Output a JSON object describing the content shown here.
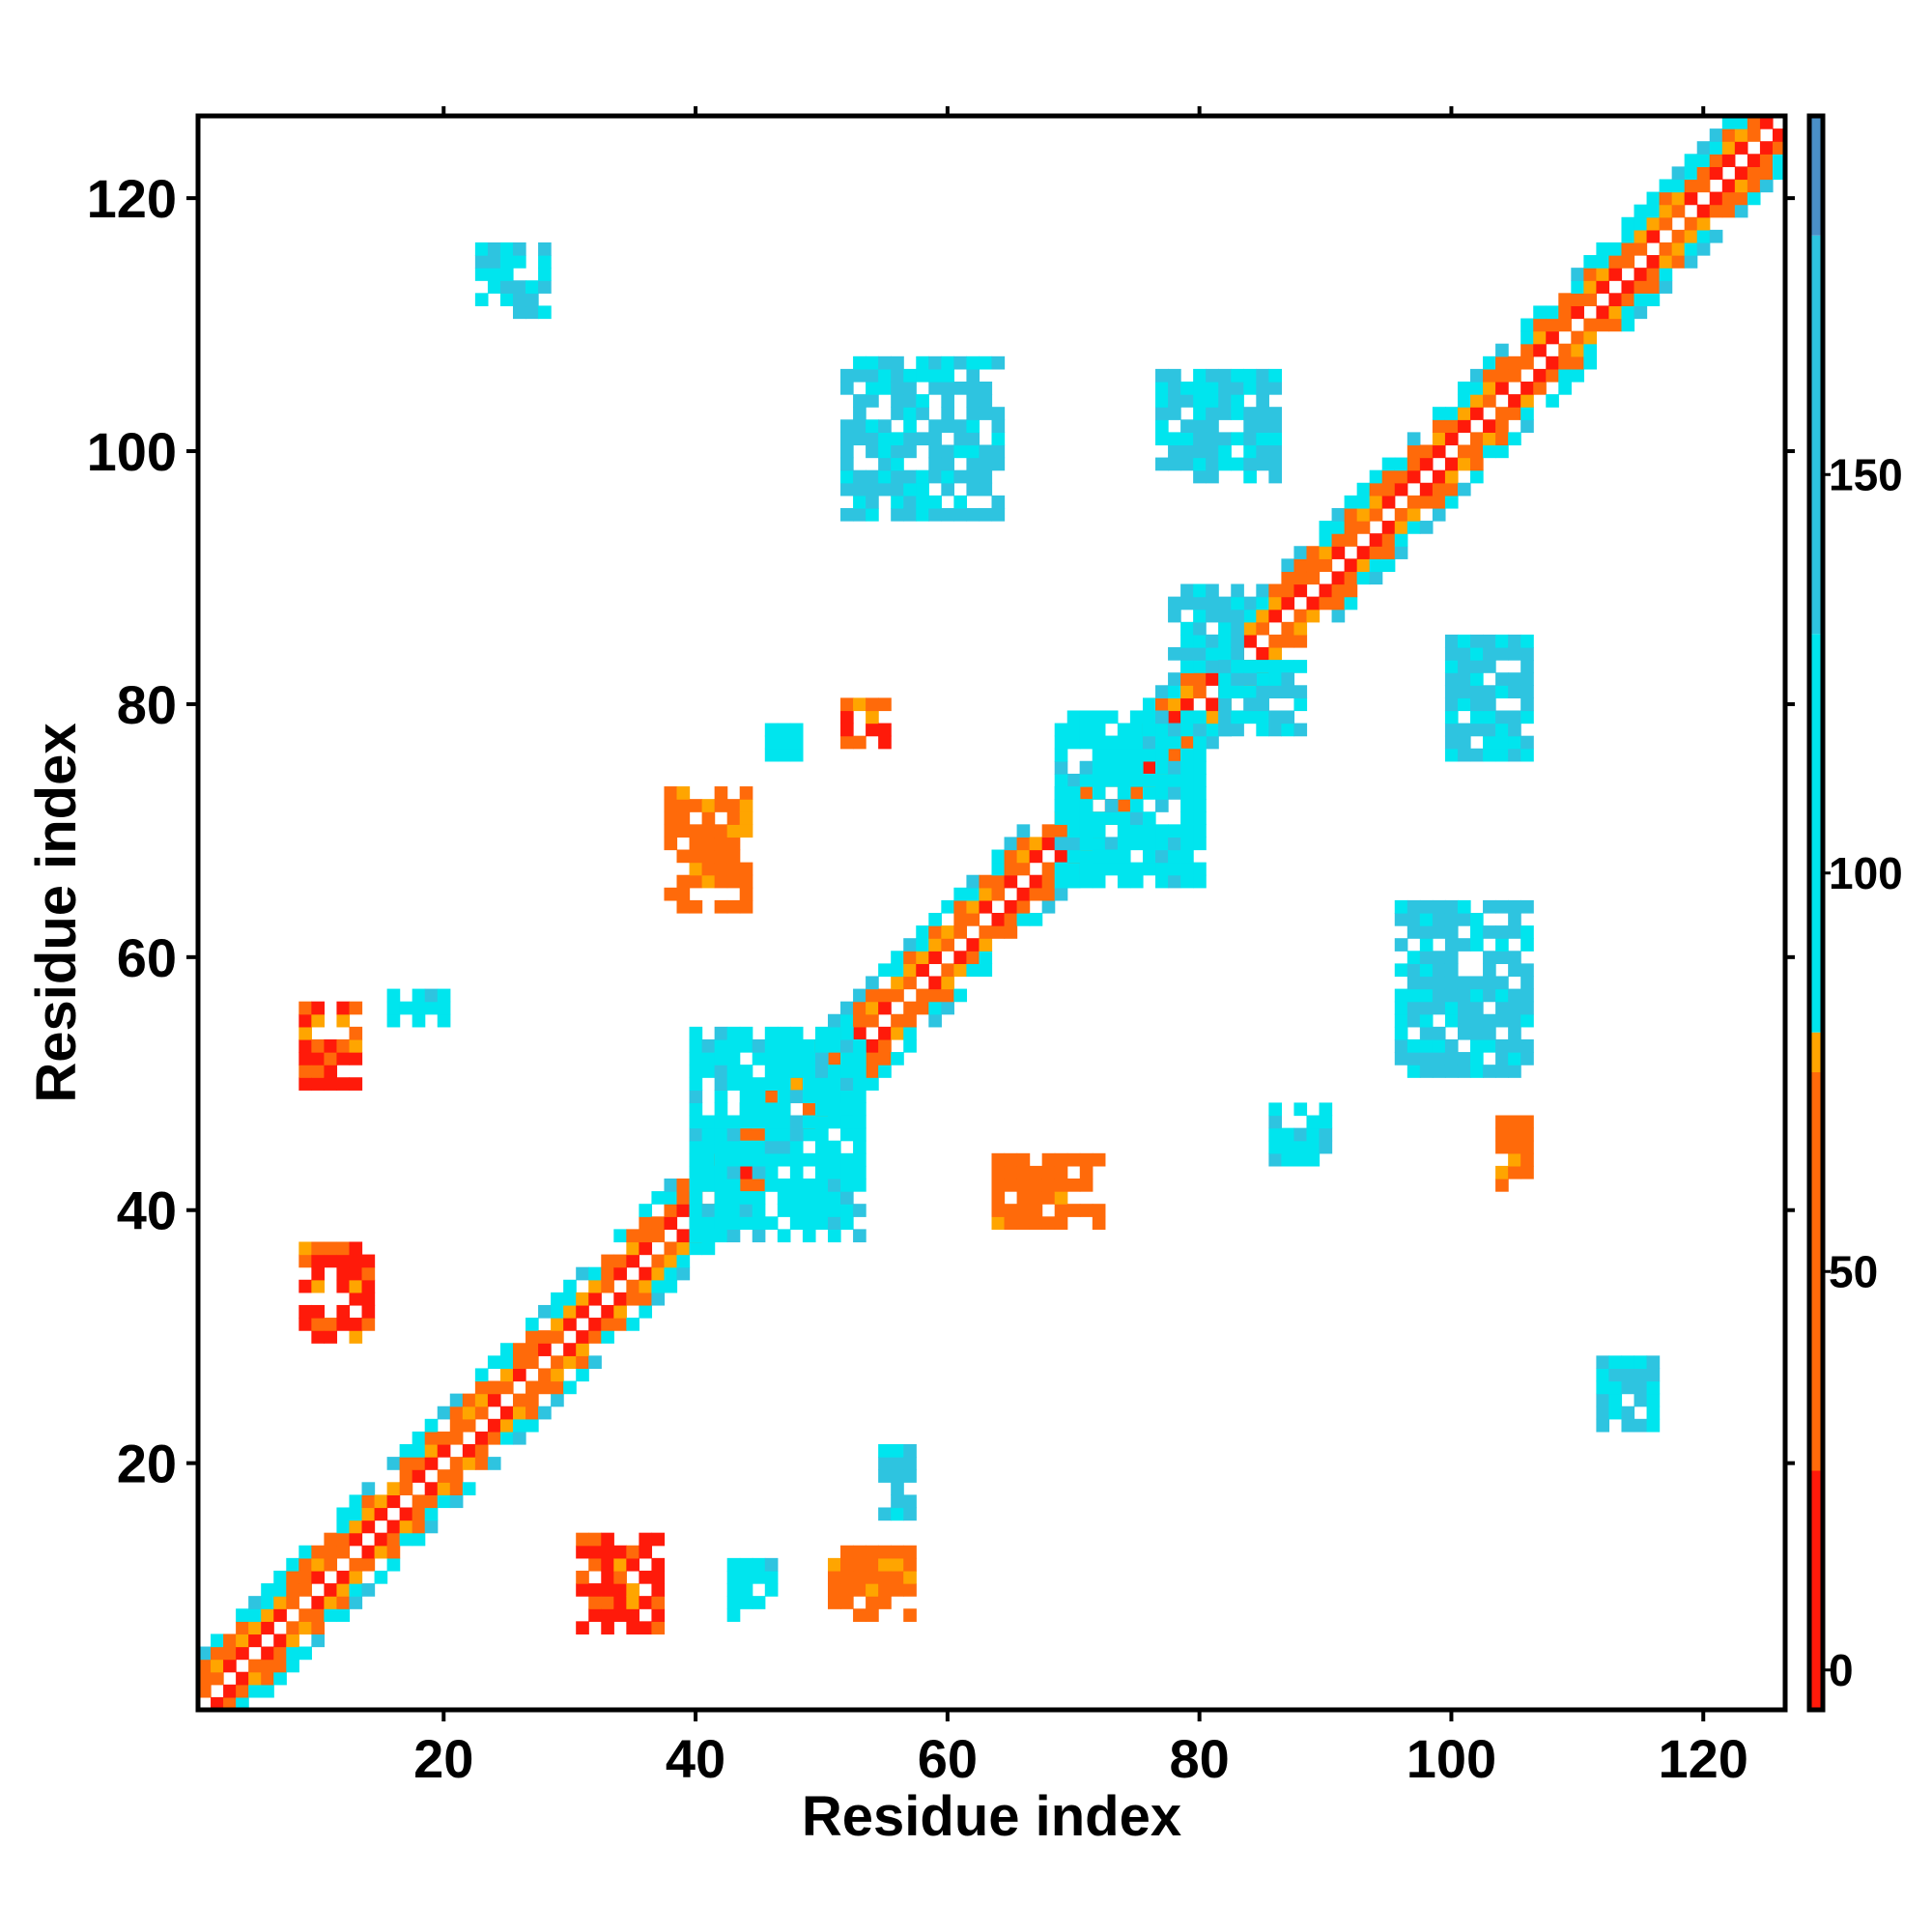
{
  "chart_data": {
    "type": "heatmap",
    "xlabel": "Residue index",
    "ylabel": "Residue index",
    "xlim": [
      1,
      126
    ],
    "ylim": [
      1,
      126
    ],
    "x_ticks": [
      20,
      40,
      60,
      80,
      100,
      120
    ],
    "y_ticks": [
      20,
      40,
      60,
      80,
      100,
      120
    ],
    "colorbar": {
      "ticks": [
        0,
        50,
        100,
        150
      ],
      "range": [
        -5,
        195
      ],
      "bands": [
        {
          "from": -5,
          "to": 25,
          "color": "#ff1a0a"
        },
        {
          "from": 25,
          "to": 75,
          "color": "#ff6a0a"
        },
        {
          "from": 75,
          "to": 80,
          "color": "#ffa500"
        },
        {
          "from": 80,
          "to": 130,
          "color": "#00e5ee"
        },
        {
          "from": 130,
          "to": 180,
          "color": "#2ec4e0"
        },
        {
          "from": 180,
          "to": 195,
          "color": "#4a90c8"
        },
        {
          "from": 195,
          "to": 195,
          "color": "#ffffff"
        }
      ]
    },
    "diagonal_band": {
      "from": 1,
      "to": 126,
      "half_width": 4
    },
    "regions": [
      {
        "x0": 9,
        "x1": 13,
        "y0": 50,
        "y1": 56,
        "value": 20
      },
      {
        "x0": 9,
        "x1": 14,
        "y0": 30,
        "y1": 37,
        "value": 20
      },
      {
        "x0": 16,
        "x1": 20,
        "y0": 55,
        "y1": 57,
        "value": 110
      },
      {
        "x0": 31,
        "x1": 37,
        "y0": 7,
        "y1": 14,
        "value": 20
      },
      {
        "x0": 51,
        "x1": 57,
        "y0": 8,
        "y1": 13,
        "value": 30
      },
      {
        "x0": 55,
        "x1": 57,
        "y0": 16,
        "y1": 21,
        "value": 140
      },
      {
        "x0": 52,
        "x1": 64,
        "y0": 95,
        "y1": 107,
        "value": 170
      },
      {
        "x0": 77,
        "x1": 86,
        "y0": 98,
        "y1": 106,
        "value": 170
      },
      {
        "x0": 96,
        "x1": 106,
        "y0": 51,
        "y1": 64,
        "value": 170
      },
      {
        "x0": 100,
        "x1": 106,
        "y0": 76,
        "y1": 85,
        "value": 170
      },
      {
        "x0": 78,
        "x1": 83,
        "y0": 83,
        "y1": 89,
        "value": 140
      },
      {
        "x0": 82,
        "x1": 88,
        "y0": 78,
        "y1": 83,
        "value": 140
      },
      {
        "x0": 40,
        "x1": 53,
        "y0": 38,
        "y1": 54,
        "value": 110
      },
      {
        "x0": 69,
        "x1": 80,
        "y0": 66,
        "y1": 79,
        "value": 110
      },
      {
        "x0": 64,
        "x1": 72,
        "y0": 39,
        "y1": 44,
        "value": 50
      },
      {
        "x0": 86,
        "x1": 90,
        "y0": 44,
        "y1": 48,
        "value": 110
      },
      {
        "x0": 112,
        "x1": 116,
        "y0": 23,
        "y1": 28,
        "value": 150
      },
      {
        "x0": 23,
        "x1": 28,
        "y0": 111,
        "y1": 116,
        "value": 150
      },
      {
        "x0": 38,
        "x1": 44,
        "y0": 64,
        "y1": 73,
        "value": 40
      },
      {
        "x0": 46,
        "x1": 48,
        "y0": 76,
        "y1": 78,
        "value": 110
      },
      {
        "x0": 52,
        "x1": 55,
        "y0": 77,
        "y1": 80,
        "value": 20
      },
      {
        "x0": 43,
        "x1": 46,
        "y0": 8,
        "y1": 12,
        "value": 110
      },
      {
        "x0": 104,
        "x1": 106,
        "y0": 42,
        "y1": 47,
        "value": 50
      }
    ]
  }
}
